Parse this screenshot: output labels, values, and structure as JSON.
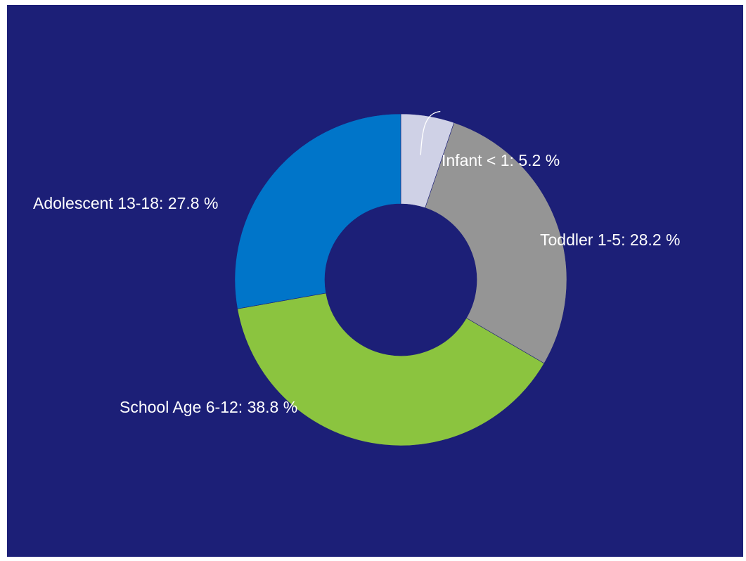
{
  "colors": {
    "background": "#1c1f77",
    "label_text": "#ffffff"
  },
  "chart_data": {
    "type": "pie",
    "donut": true,
    "title": "",
    "legend": "none",
    "slices": [
      {
        "name": "Infant < 1",
        "value": 5.2,
        "color": "#cfd1e6",
        "label": "Infant < 1: 5.2 %"
      },
      {
        "name": "Toddler 1-5",
        "value": 28.2,
        "color": "#959595",
        "label": "Toddler 1-5: 28.2 %"
      },
      {
        "name": "School Age 6-12",
        "value": 38.8,
        "color": "#8bc43f",
        "label": "School Age 6-12: 38.8 %"
      },
      {
        "name": "Adolescent 13-18",
        "value": 27.8,
        "color": "#0075c9",
        "label": "Adolescent 13-18: 27.8 %"
      }
    ]
  }
}
